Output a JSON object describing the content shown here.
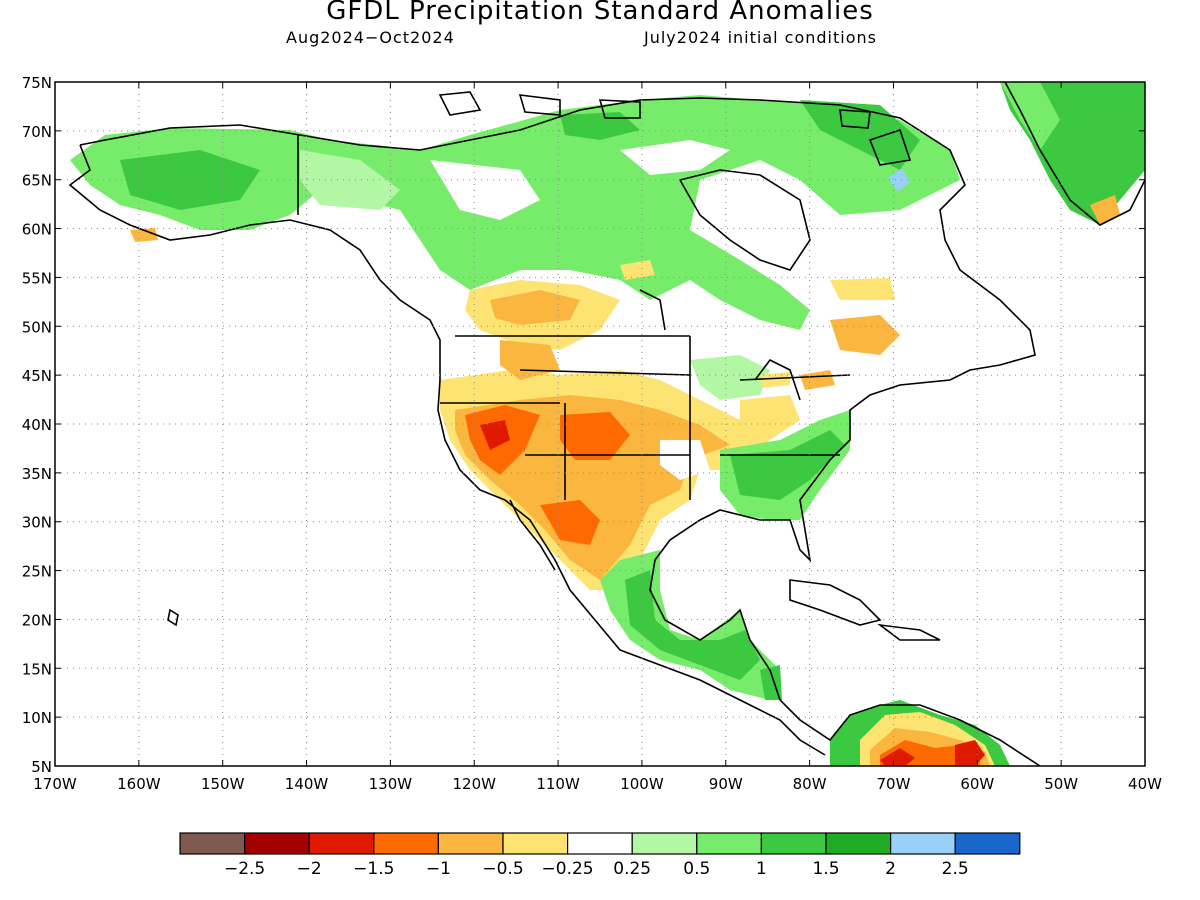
{
  "header": {
    "title": "GFDL Precipitation Standard Anomalies",
    "period": "Aug2024−Oct2024",
    "initial_conditions": "July2024 initial conditions"
  },
  "map": {
    "lat_labels": [
      "75N",
      "70N",
      "65N",
      "60N",
      "55N",
      "50N",
      "45N",
      "40N",
      "35N",
      "30N",
      "25N",
      "20N",
      "15N",
      "10N",
      "5N"
    ],
    "lon_labels": [
      "170W",
      "160W",
      "150W",
      "140W",
      "130W",
      "120W",
      "110W",
      "100W",
      "90W",
      "80W",
      "70W",
      "60W",
      "50W",
      "40W"
    ]
  },
  "colorbar": {
    "colors": [
      "#7f5a4f",
      "#a30000",
      "#e01a00",
      "#ff6a00",
      "#fbb63f",
      "#fde472",
      "#ffffff",
      "#b3f7a5",
      "#77ec6a",
      "#3cc941",
      "#20ab25",
      "#97d1f7",
      "#1a66cc"
    ],
    "labels": [
      "−2.5",
      "−2",
      "−1.5",
      "−1",
      "−0.5",
      "−0.25",
      "0.25",
      "0.5",
      "1",
      "1.5",
      "2",
      "2.5"
    ]
  }
}
